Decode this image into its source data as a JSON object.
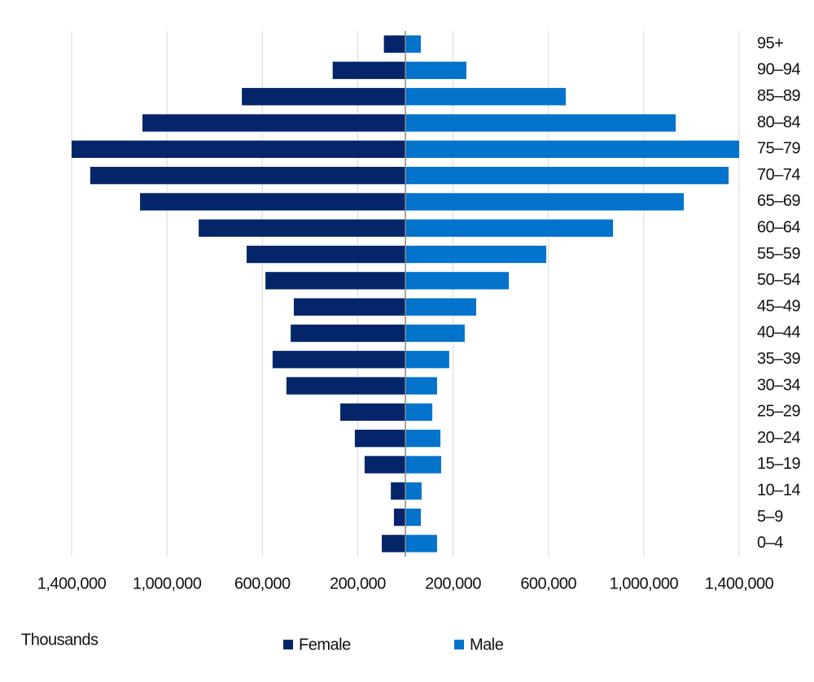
{
  "chart_data": {
    "type": "pyramid",
    "xlabel": "Thousands",
    "categories": [
      "95+",
      "90–94",
      "85–89",
      "80–84",
      "75–79",
      "70–74",
      "65–69",
      "60–64",
      "55–59",
      "50–54",
      "45–49",
      "40–44",
      "35–39",
      "30–34",
      "25–29",
      "20–24",
      "15–19",
      "10–14",
      "5–9",
      "0–4"
    ],
    "series": [
      {
        "name": "Female",
        "color": "#04256a",
        "side": "left",
        "values": [
          90000,
          305000,
          686000,
          1103000,
          1400000,
          1322000,
          1113000,
          867000,
          666000,
          587000,
          468000,
          481000,
          557000,
          499000,
          273000,
          212000,
          171000,
          61000,
          48000,
          99000
        ]
      },
      {
        "name": "Male",
        "color": "#0373cc",
        "side": "right",
        "values": [
          65000,
          256000,
          673000,
          1134000,
          1400000,
          1356000,
          1168000,
          871000,
          591000,
          434000,
          297000,
          249000,
          184000,
          133000,
          113000,
          147000,
          150000,
          68000,
          65000,
          133000
        ]
      }
    ],
    "xlim": [
      -1400000,
      1400000
    ],
    "xticks": [
      {
        "value": -1400000,
        "label": "1,400,000"
      },
      {
        "value": -1000000,
        "label": "1,000,000"
      },
      {
        "value": -600000,
        "label": "600,000"
      },
      {
        "value": -200000,
        "label": "200,000"
      },
      {
        "value": 200000,
        "label": "200,000"
      },
      {
        "value": 600000,
        "label": "600,000"
      },
      {
        "value": 1000000,
        "label": "1,000,000"
      },
      {
        "value": 1400000,
        "label": "1,400,000"
      }
    ],
    "grid": true
  }
}
